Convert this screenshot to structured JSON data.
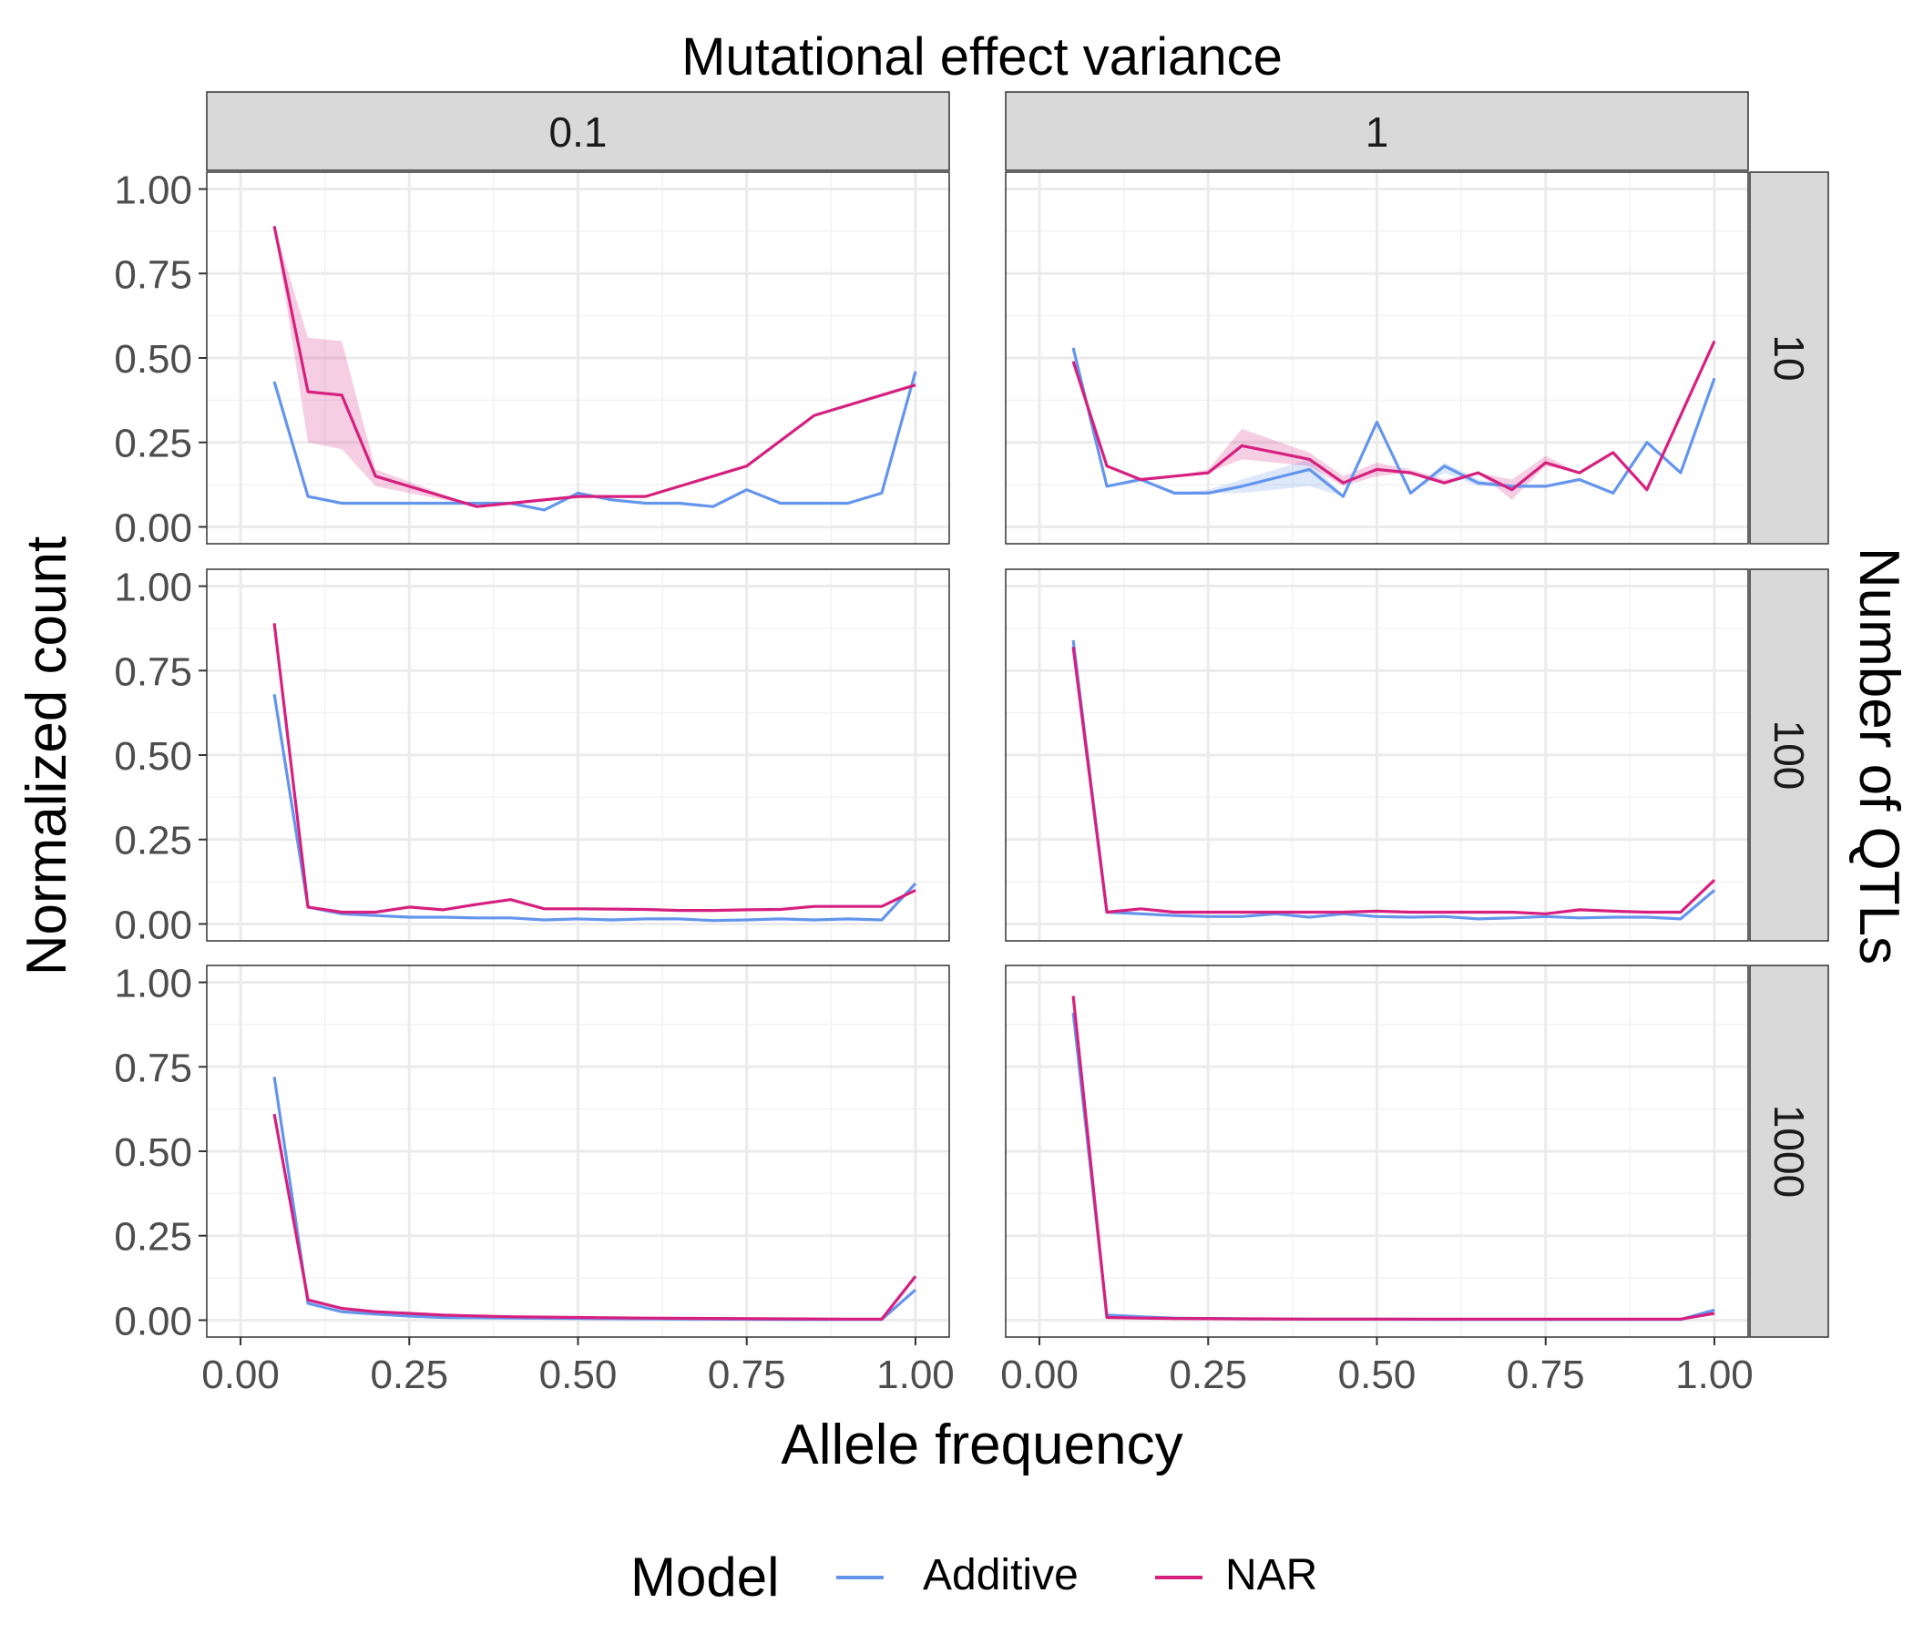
{
  "chart_data": {
    "type": "line",
    "facet_title_top": "Mutational effect variance",
    "facet_title_right": "Number of QTLs",
    "xlabel": "Allele frequency",
    "ylabel": "Normalized count",
    "col_labels": [
      "0.1",
      "1"
    ],
    "row_labels": [
      "10",
      "100",
      "1000"
    ],
    "xlim": [
      -0.05,
      1.05
    ],
    "ylim": [
      -0.05,
      1.05
    ],
    "x_ticks": [
      "0.00",
      "0.25",
      "0.50",
      "0.75",
      "1.00"
    ],
    "y_ticks": [
      "0.00",
      "0.25",
      "0.50",
      "0.75",
      "1.00"
    ],
    "grid": true,
    "legend": {
      "title": "Model",
      "position": "bottom",
      "entries": [
        {
          "label": "Additive",
          "color": "#6495ED"
        },
        {
          "label": "NAR",
          "color": "#D61F7F"
        }
      ]
    },
    "series_colors": {
      "Additive": "#6495ED",
      "NAR": "#D61F7F"
    },
    "panels": [
      {
        "col": "0.1",
        "row": "10",
        "series": [
          {
            "name": "Additive",
            "x": [
              0.05,
              0.1,
              0.15,
              0.2,
              0.25,
              0.3,
              0.35,
              0.4,
              0.45,
              0.5,
              0.55,
              0.6,
              0.65,
              0.7,
              0.75,
              0.8,
              0.85,
              0.9,
              0.95,
              1.0
            ],
            "y": [
              0.43,
              0.09,
              0.07,
              0.07,
              0.07,
              0.07,
              0.07,
              0.07,
              0.05,
              0.1,
              0.08,
              0.07,
              0.07,
              0.06,
              0.11,
              0.07,
              0.07,
              0.07,
              0.1,
              0.46
            ]
          },
          {
            "name": "NAR",
            "x": [
              0.05,
              0.1,
              0.15,
              0.2,
              0.35,
              0.4,
              0.5,
              0.6,
              0.75,
              0.85,
              1.0
            ],
            "y": [
              0.89,
              0.4,
              0.39,
              0.15,
              0.06,
              0.07,
              0.09,
              0.09,
              0.18,
              0.33,
              0.42
            ],
            "lower": [
              0.89,
              0.25,
              0.23,
              0.12,
              0.06,
              0.07,
              0.09,
              0.09,
              0.18,
              0.33,
              0.42
            ],
            "upper": [
              0.89,
              0.56,
              0.55,
              0.17,
              0.06,
              0.07,
              0.09,
              0.09,
              0.18,
              0.33,
              0.42
            ]
          }
        ]
      },
      {
        "col": "1",
        "row": "10",
        "series": [
          {
            "name": "Additive",
            "x": [
              0.05,
              0.1,
              0.15,
              0.2,
              0.25,
              0.3,
              0.4,
              0.45,
              0.5,
              0.55,
              0.6,
              0.65,
              0.7,
              0.75,
              0.8,
              0.85,
              0.9,
              0.95,
              1.0
            ],
            "y": [
              0.53,
              0.12,
              0.14,
              0.1,
              0.1,
              0.12,
              0.17,
              0.09,
              0.31,
              0.1,
              0.18,
              0.13,
              0.12,
              0.12,
              0.14,
              0.1,
              0.25,
              0.16,
              0.44
            ],
            "lower": [
              0.53,
              0.12,
              0.14,
              0.1,
              0.1,
              0.1,
              0.12,
              0.09,
              0.31,
              0.1,
              0.16,
              0.12,
              0.12,
              0.12,
              0.14,
              0.1,
              0.25,
              0.16,
              0.44
            ],
            "upper": [
              0.53,
              0.12,
              0.14,
              0.1,
              0.11,
              0.14,
              0.2,
              0.09,
              0.31,
              0.1,
              0.19,
              0.14,
              0.12,
              0.12,
              0.14,
              0.1,
              0.25,
              0.16,
              0.44
            ]
          },
          {
            "name": "NAR",
            "x": [
              0.05,
              0.1,
              0.15,
              0.2,
              0.25,
              0.3,
              0.4,
              0.45,
              0.5,
              0.55,
              0.6,
              0.65,
              0.7,
              0.75,
              0.8,
              0.85,
              0.9,
              1.0
            ],
            "y": [
              0.49,
              0.18,
              0.14,
              0.15,
              0.16,
              0.24,
              0.2,
              0.13,
              0.17,
              0.16,
              0.13,
              0.16,
              0.11,
              0.19,
              0.16,
              0.22,
              0.11,
              0.55
            ],
            "lower": [
              0.49,
              0.18,
              0.14,
              0.15,
              0.16,
              0.2,
              0.18,
              0.12,
              0.15,
              0.16,
              0.13,
              0.16,
              0.08,
              0.18,
              0.16,
              0.22,
              0.11,
              0.55
            ],
            "upper": [
              0.49,
              0.18,
              0.14,
              0.15,
              0.17,
              0.29,
              0.22,
              0.15,
              0.19,
              0.17,
              0.14,
              0.16,
              0.14,
              0.21,
              0.16,
              0.22,
              0.11,
              0.55
            ]
          }
        ]
      },
      {
        "col": "0.1",
        "row": "100",
        "series": [
          {
            "name": "Additive",
            "x": [
              0.05,
              0.1,
              0.15,
              0.2,
              0.25,
              0.3,
              0.35,
              0.4,
              0.45,
              0.5,
              0.55,
              0.6,
              0.65,
              0.7,
              0.75,
              0.8,
              0.85,
              0.9,
              0.95,
              1.0
            ],
            "y": [
              0.68,
              0.05,
              0.03,
              0.025,
              0.02,
              0.02,
              0.018,
              0.018,
              0.012,
              0.015,
              0.012,
              0.015,
              0.015,
              0.01,
              0.012,
              0.015,
              0.012,
              0.015,
              0.012,
              0.12
            ]
          },
          {
            "name": "NAR",
            "x": [
              0.05,
              0.1,
              0.15,
              0.2,
              0.25,
              0.3,
              0.35,
              0.4,
              0.45,
              0.5,
              0.55,
              0.6,
              0.65,
              0.7,
              0.75,
              0.8,
              0.85,
              0.9,
              0.95,
              1.0
            ],
            "y": [
              0.89,
              0.05,
              0.035,
              0.035,
              0.05,
              0.042,
              0.058,
              0.072,
              0.045,
              0.045,
              0.044,
              0.043,
              0.04,
              0.04,
              0.042,
              0.043,
              0.052,
              0.052,
              0.052,
              0.1
            ]
          }
        ]
      },
      {
        "col": "1",
        "row": "100",
        "series": [
          {
            "name": "Additive",
            "x": [
              0.05,
              0.1,
              0.15,
              0.2,
              0.25,
              0.3,
              0.35,
              0.4,
              0.45,
              0.5,
              0.55,
              0.6,
              0.65,
              0.7,
              0.75,
              0.8,
              0.85,
              0.9,
              0.95,
              1.0
            ],
            "y": [
              0.84,
              0.035,
              0.03,
              0.025,
              0.022,
              0.022,
              0.03,
              0.02,
              0.03,
              0.022,
              0.02,
              0.022,
              0.015,
              0.018,
              0.022,
              0.018,
              0.02,
              0.02,
              0.015,
              0.1
            ]
          },
          {
            "name": "NAR",
            "x": [
              0.05,
              0.1,
              0.15,
              0.2,
              0.25,
              0.3,
              0.35,
              0.4,
              0.45,
              0.5,
              0.55,
              0.6,
              0.65,
              0.7,
              0.75,
              0.8,
              0.85,
              0.9,
              0.95,
              1.0
            ],
            "y": [
              0.82,
              0.035,
              0.045,
              0.035,
              0.035,
              0.035,
              0.035,
              0.035,
              0.035,
              0.038,
              0.035,
              0.035,
              0.035,
              0.035,
              0.03,
              0.042,
              0.038,
              0.035,
              0.035,
              0.13
            ]
          }
        ]
      },
      {
        "col": "0.1",
        "row": "1000",
        "series": [
          {
            "name": "Additive",
            "x": [
              0.05,
              0.1,
              0.15,
              0.2,
              0.25,
              0.3,
              0.4,
              0.5,
              0.6,
              0.7,
              0.8,
              0.9,
              0.95,
              1.0
            ],
            "y": [
              0.72,
              0.05,
              0.025,
              0.018,
              0.012,
              0.008,
              0.006,
              0.005,
              0.004,
              0.003,
              0.002,
              0.002,
              0.002,
              0.09
            ]
          },
          {
            "name": "NAR",
            "x": [
              0.05,
              0.1,
              0.15,
              0.2,
              0.25,
              0.3,
              0.4,
              0.5,
              0.6,
              0.7,
              0.8,
              0.9,
              0.95,
              1.0
            ],
            "y": [
              0.61,
              0.06,
              0.035,
              0.025,
              0.02,
              0.015,
              0.01,
              0.008,
              0.006,
              0.005,
              0.004,
              0.003,
              0.003,
              0.13
            ]
          }
        ]
      },
      {
        "col": "1",
        "row": "1000",
        "series": [
          {
            "name": "Additive",
            "x": [
              0.05,
              0.1,
              0.15,
              0.2,
              0.3,
              0.4,
              0.5,
              0.6,
              0.7,
              0.8,
              0.9,
              0.95,
              1.0
            ],
            "y": [
              0.91,
              0.015,
              0.01,
              0.006,
              0.004,
              0.003,
              0.003,
              0.002,
              0.002,
              0.002,
              0.002,
              0.002,
              0.03
            ]
          },
          {
            "name": "NAR",
            "x": [
              0.05,
              0.1,
              0.15,
              0.2,
              0.3,
              0.4,
              0.5,
              0.6,
              0.7,
              0.8,
              0.9,
              0.95,
              1.0
            ],
            "y": [
              0.96,
              0.008,
              0.006,
              0.005,
              0.004,
              0.003,
              0.003,
              0.003,
              0.003,
              0.003,
              0.003,
              0.003,
              0.02
            ]
          }
        ]
      }
    ]
  }
}
